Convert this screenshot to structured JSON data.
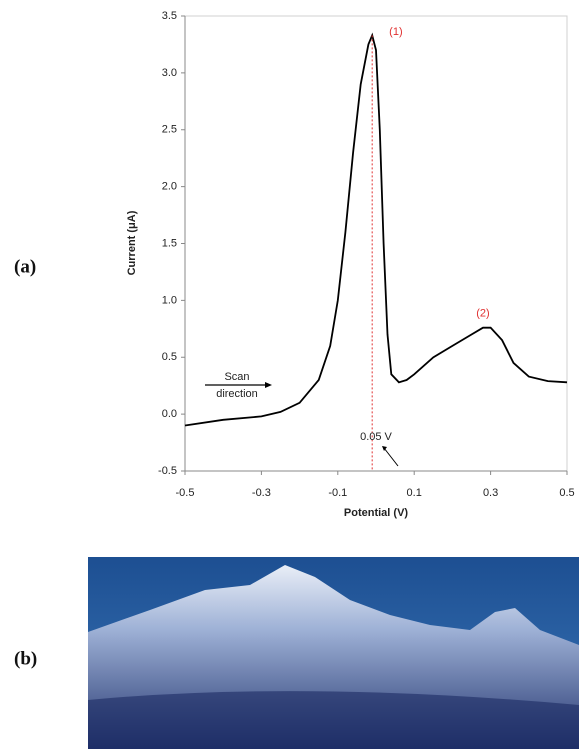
{
  "labels": [
    "(a)",
    "(b)"
  ],
  "chart_data": {
    "type": "line",
    "y_label": "Current (μA)",
    "x_label": "Potential (V)",
    "annotations": [
      "(1)",
      "(2)",
      "Scan",
      "direction",
      "0.05 V"
    ],
    "color": "#000000",
    "x": [
      -0.5,
      -0.4,
      -0.3,
      -0.25,
      -0.2,
      -0.15,
      -0.12,
      -0.1,
      -0.08,
      -0.06,
      -0.04,
      -0.02,
      -0.01,
      0.0,
      0.01,
      0.02,
      0.03,
      0.04,
      0.06,
      0.08,
      0.1,
      0.15,
      0.2,
      0.25,
      0.28,
      0.3,
      0.33,
      0.36,
      0.4,
      0.45,
      0.5
    ],
    "values": [
      -0.1,
      -0.05,
      -0.02,
      0.02,
      0.1,
      0.3,
      0.6,
      1.0,
      1.6,
      2.3,
      2.9,
      3.25,
      3.33,
      3.2,
      2.5,
      1.5,
      0.7,
      0.35,
      0.28,
      0.3,
      0.35,
      0.5,
      0.6,
      0.7,
      0.76,
      0.76,
      0.65,
      0.45,
      0.33,
      0.29,
      0.28
    ],
    "xlim": [
      -0.5,
      0.5
    ],
    "xticks": [
      -0.5,
      -0.3,
      -0.1,
      0.1,
      0.3,
      0.5
    ],
    "ylim": [
      -0.5,
      3.5
    ],
    "yticks": [
      -0.5,
      {
        "value": 0,
        "label": "0.0"
      },
      0.5,
      {
        "value": 1,
        "label": "1.0"
      },
      1.5,
      {
        "value": 2,
        "label": "2.0"
      },
      2.5,
      {
        "value": 3,
        "label": "3.0"
      },
      3.5
    ]
  }
}
